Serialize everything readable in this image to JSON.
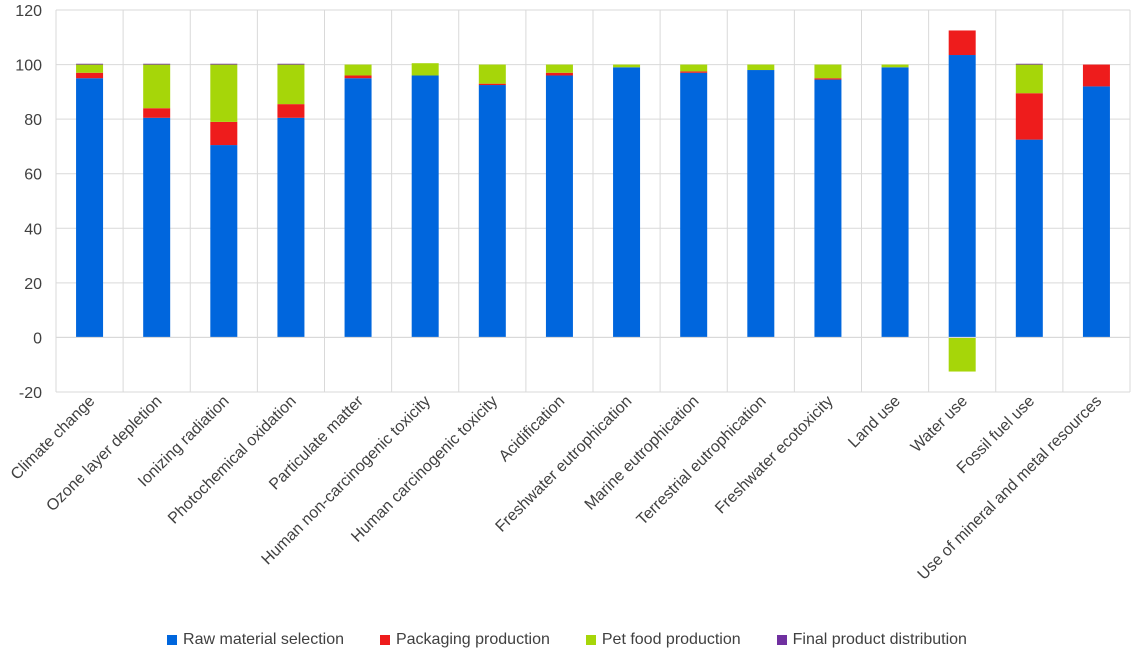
{
  "chart_data": {
    "type": "bar",
    "stacked": true,
    "categories": [
      "Climate change",
      "Ozone layer depletion",
      "Ionizing radiation",
      "Photochemical oxidation",
      "Particulate matter",
      "Human non-carcinogenic toxicity",
      "Human carcinogenic toxicity",
      "Acidification",
      "Freshwater eutrophication",
      "Marine eutrophication",
      "Terrestrial eutrophication",
      "Freshwater ecotoxicity",
      "Land use",
      "Water use",
      "Fossil fuel use",
      "Use of mineral and metal resources"
    ],
    "series": [
      {
        "name": "Raw material selection",
        "color": "#0066DD",
        "values": [
          95,
          80.5,
          70.5,
          80.5,
          95,
          96,
          92.5,
          96,
          99,
          97,
          98,
          94.5,
          99,
          103.5,
          72.5,
          92
        ]
      },
      {
        "name": "Packaging production",
        "color": "#EE1C1C",
        "values": [
          2,
          3.5,
          8.5,
          5,
          1,
          0,
          0.5,
          1,
          0,
          0.5,
          0,
          0.5,
          0,
          9,
          17,
          8
        ]
      },
      {
        "name": "Pet food production",
        "color": "#A6D609",
        "values": [
          3,
          16,
          21,
          14.5,
          4,
          4.5,
          7,
          3,
          1,
          2.5,
          2,
          5,
          1,
          -12.5,
          10.5,
          0
        ]
      },
      {
        "name": "Final product distribution",
        "color": "#7030A0",
        "values": [
          0.3,
          0.3,
          0.3,
          0.3,
          0,
          0,
          0,
          0,
          0,
          0,
          0,
          0,
          0,
          0,
          0.3,
          0
        ]
      }
    ],
    "ylim": [
      -20,
      120
    ],
    "yticks": [
      "-20",
      "0",
      "20",
      "40",
      "60",
      "80",
      "100",
      "120"
    ],
    "grid": true,
    "legend_position": "bottom"
  }
}
